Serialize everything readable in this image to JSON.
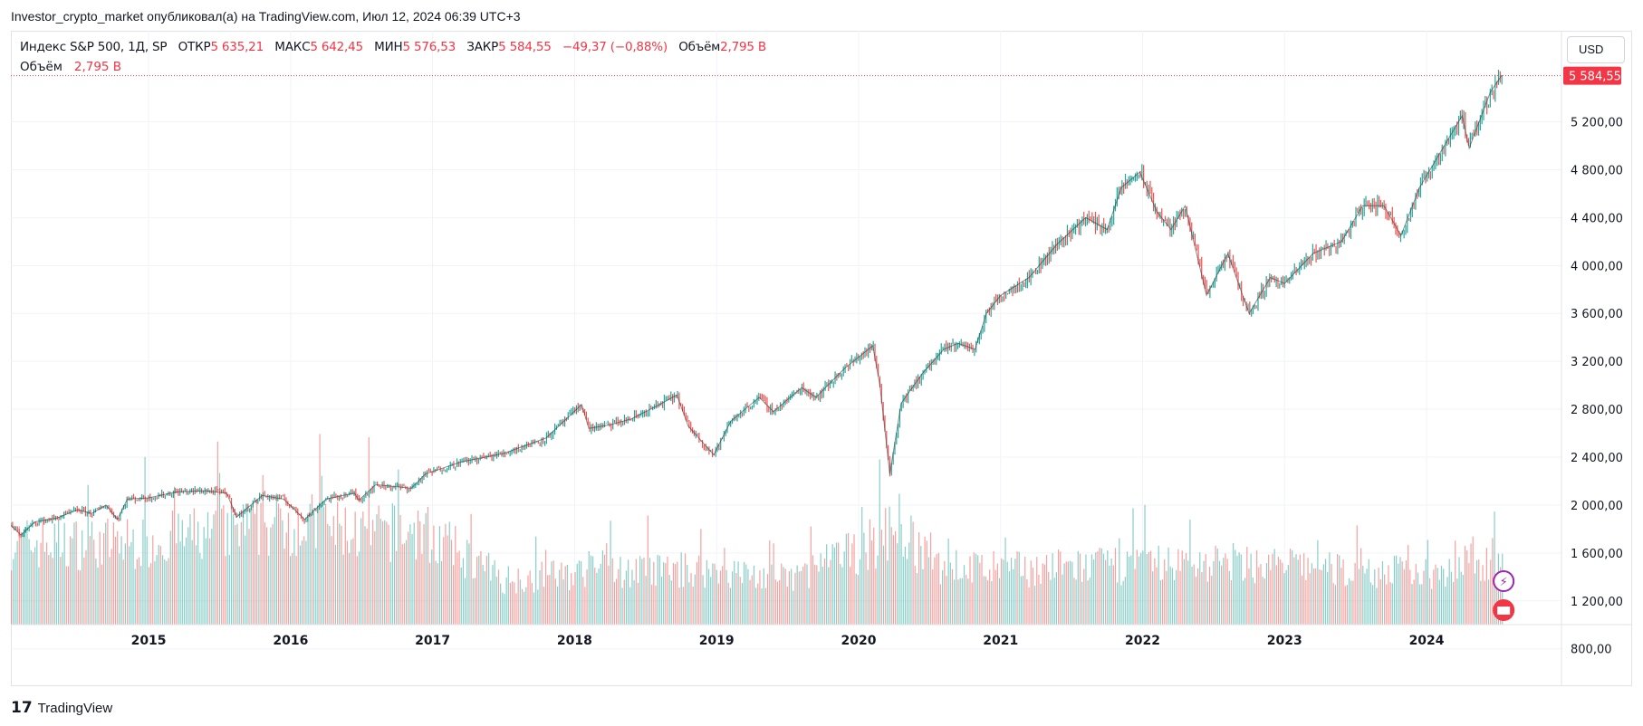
{
  "header": {
    "publisher_line": "Investor_crypto_market опубликовал(а) на TradingView.com, Июл 12, 2024 06:39 UTC+3"
  },
  "legend": {
    "symbol": "Индекс S&P 500, 1Д, SP",
    "open_label": "ОТКР",
    "open_value": "5 635,21",
    "high_label": "МАКС",
    "high_value": "5 642,45",
    "low_label": "МИН",
    "low_value": "5 576,53",
    "close_label": "ЗАКР",
    "close_value": "5 584,55",
    "change": "−49,37 (−0,88%)",
    "volume_label": "Объём",
    "volume_value": "2,795 B"
  },
  "volume_row": {
    "label": "Объём",
    "value": "2,795 B"
  },
  "currency_button": "USD",
  "last_price_tag": "5 584,55",
  "footer": {
    "logo_glyph": "17",
    "brand": "TradingView"
  },
  "colors": {
    "up": "#26a69a",
    "down": "#ef5350",
    "price_tag": "#f23645",
    "grid": "#f0f3fa",
    "axis_text": "#131722"
  },
  "chart_data": {
    "type": "line",
    "title": "Индекс S&P 500, 1Д, SP",
    "xlabel": "",
    "ylabel": "",
    "x_ticks": [
      "2015",
      "2016",
      "2017",
      "2018",
      "2019",
      "2020",
      "2021",
      "2022",
      "2023",
      "2024"
    ],
    "y_ticks": [
      "800,00",
      "1 200,00",
      "1 600,00",
      "2 000,00",
      "2 400,00",
      "2 800,00",
      "3 200,00",
      "3 600,00",
      "4 000,00",
      "4 400,00",
      "4 800,00",
      "5 200,00"
    ],
    "y_tick_values": [
      800,
      1200,
      1600,
      2000,
      2400,
      2800,
      3200,
      3600,
      4000,
      4400,
      4800,
      5200
    ],
    "ylim": [
      760,
      5960
    ],
    "xlim": [
      2014.03,
      2024.95
    ],
    "price_series": {
      "name": "S&P 500 close",
      "x": [
        2014.03,
        2014.1,
        2014.2,
        2014.35,
        2014.5,
        2014.6,
        2014.7,
        2014.78,
        2014.85,
        2015.0,
        2015.2,
        2015.4,
        2015.55,
        2015.62,
        2015.68,
        2015.8,
        2015.95,
        2016.1,
        2016.25,
        2016.45,
        2016.48,
        2016.6,
        2016.85,
        2016.95,
        2017.2,
        2017.5,
        2017.8,
        2018.05,
        2018.1,
        2018.25,
        2018.4,
        2018.6,
        2018.72,
        2018.8,
        2018.98,
        2019.1,
        2019.3,
        2019.4,
        2019.6,
        2019.7,
        2019.9,
        2020.1,
        2020.15,
        2020.22,
        2020.3,
        2020.45,
        2020.6,
        2020.7,
        2020.82,
        2020.9,
        2021.0,
        2021.2,
        2021.4,
        2021.6,
        2021.75,
        2021.85,
        2021.98,
        2022.1,
        2022.2,
        2022.3,
        2022.45,
        2022.6,
        2022.75,
        2022.9,
        2023.0,
        2023.2,
        2023.4,
        2023.55,
        2023.7,
        2023.82,
        2023.95,
        2024.1,
        2024.25,
        2024.3,
        2024.45,
        2024.53
      ],
      "values": [
        1830,
        1750,
        1860,
        1890,
        1960,
        1930,
        2000,
        1880,
        2050,
        2060,
        2110,
        2120,
        2100,
        1900,
        1960,
        2080,
        2050,
        1880,
        2050,
        2100,
        2040,
        2170,
        2140,
        2260,
        2360,
        2430,
        2560,
        2840,
        2640,
        2670,
        2720,
        2840,
        2920,
        2660,
        2420,
        2700,
        2900,
        2780,
        2980,
        2900,
        3140,
        3330,
        3000,
        2260,
        2850,
        3100,
        3300,
        3350,
        3300,
        3600,
        3750,
        3900,
        4180,
        4400,
        4300,
        4650,
        4780,
        4450,
        4300,
        4500,
        3750,
        4100,
        3600,
        3900,
        3850,
        4100,
        4200,
        4500,
        4500,
        4250,
        4650,
        4950,
        5250,
        4980,
        5450,
        5590
      ]
    },
    "volume_series": {
      "name": "Объём",
      "note": "volume in billions; ~1900 daily bars, approximate envelope",
      "x": [
        2014.03,
        2014.9,
        2015.6,
        2016.0,
        2016.5,
        2016.93,
        2017.5,
        2018.1,
        2018.9,
        2019.5,
        2020.15,
        2020.25,
        2020.5,
        2021.0,
        2022.0,
        2022.5,
        2023.0,
        2023.5,
        2024.0,
        2024.53
      ],
      "values": [
        3.4,
        3.4,
        3.9,
        4.3,
        3.8,
        3.9,
        1.9,
        2.2,
        2.3,
        1.9,
        3.5,
        4.4,
        2.5,
        2.3,
        2.5,
        2.6,
        2.5,
        2.2,
        2.2,
        2.8
      ]
    },
    "last_value": 5584.55
  }
}
